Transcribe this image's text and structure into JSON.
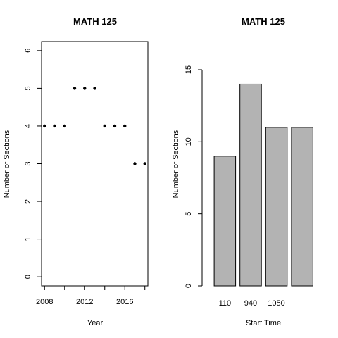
{
  "chart_data": [
    {
      "type": "scatter",
      "title": "MATH 125",
      "xlabel": "Year",
      "ylabel": "Number of Sections",
      "x": [
        2008,
        2009,
        2010,
        2011,
        2012,
        2013,
        2014,
        2015,
        2016,
        2017,
        2018
      ],
      "y": [
        4,
        4,
        4,
        5,
        5,
        5,
        4,
        4,
        4,
        3,
        3
      ],
      "xlim": [
        2007.7,
        2018.3
      ],
      "ylim": [
        -0.24,
        6.24
      ],
      "xticks": [
        2008,
        2012,
        2016
      ],
      "xticks_minor": [
        2008,
        2010,
        2012,
        2014,
        2016,
        2018
      ],
      "yticks": [
        0,
        1,
        2,
        3,
        4,
        5,
        6
      ],
      "grid": false,
      "marker_color": "#000000"
    },
    {
      "type": "bar",
      "title": "MATH 125",
      "xlabel": "Start Time",
      "ylabel": "Number of Sections",
      "categories": [
        "110",
        "940",
        "1050",
        ""
      ],
      "values": [
        9,
        14,
        11,
        11
      ],
      "ylim": [
        0,
        15
      ],
      "yticks": [
        0,
        5,
        10,
        15
      ],
      "grid": false,
      "bar_color": "#b3b3b3",
      "bar_edge_color": "#000000"
    }
  ]
}
